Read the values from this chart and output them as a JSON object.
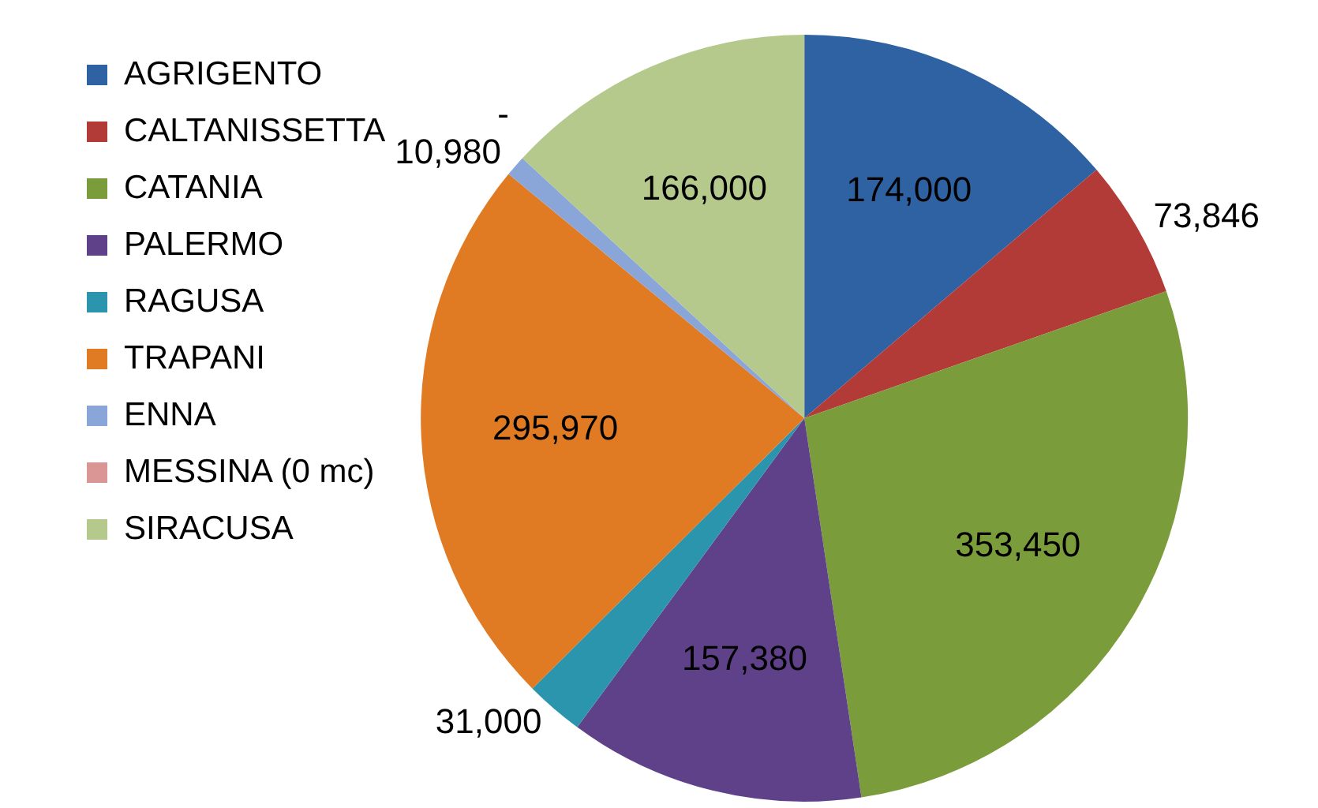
{
  "chart_data": {
    "type": "pie",
    "categories": [
      "AGRIGENTO",
      "CALTANISSETTA",
      "CATANIA",
      "PALERMO",
      "RAGUSA",
      "TRAPANI",
      "ENNA",
      "MESSINA (0 mc)",
      "SIRACUSA"
    ],
    "values": [
      174000,
      73846,
      353450,
      157380,
      31000,
      295970,
      10980,
      0,
      166000
    ],
    "colors": [
      "#2f62a3",
      "#b23b38",
      "#7b9c3a",
      "#5f4189",
      "#2b95ae",
      "#e07b24",
      "#8aa5d8",
      "#d99694",
      "#b4c98b"
    ],
    "value_labels": [
      "174,000",
      "73,846",
      "353,450",
      "157,380",
      "31,000",
      "295,970",
      "10,980",
      "-",
      "166,000"
    ],
    "legend": "left"
  }
}
